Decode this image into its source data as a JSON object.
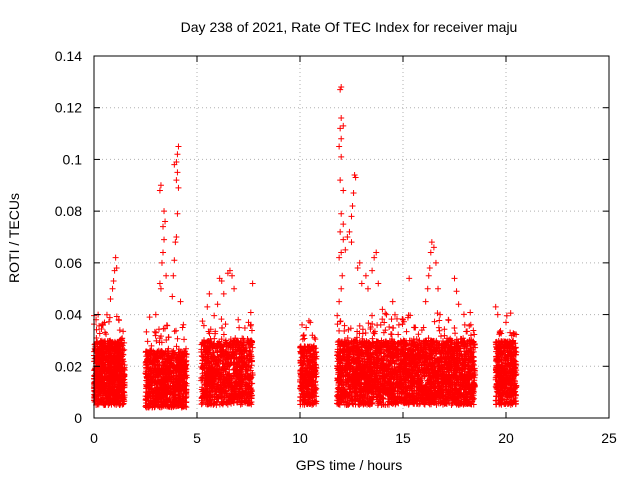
{
  "chart_data": {
    "type": "scatter",
    "title": "Day 238 of 2021, Rate Of TEC Index for receiver maju",
    "xlabel": "GPS time / hours",
    "ylabel": "ROTI / TECUs",
    "xlim": [
      0,
      25
    ],
    "ylim": [
      0,
      0.14
    ],
    "xticks": [
      "0",
      "5",
      "10",
      "15",
      "20",
      "25"
    ],
    "yticks": [
      "0",
      "0.02",
      "0.04",
      "0.06",
      "0.08",
      "0.1",
      "0.12",
      "0.14"
    ],
    "grid": true,
    "marker": "+",
    "color": "#ff0000",
    "series": [
      {
        "name": "ROTI",
        "clusters": [
          {
            "x_range": [
              0.0,
              1.5
            ],
            "base_range": [
              0.005,
              0.03
            ],
            "count": 900
          },
          {
            "x_range": [
              2.5,
              4.5
            ],
            "base_range": [
              0.004,
              0.026
            ],
            "count": 900
          },
          {
            "x_range": [
              5.2,
              7.7
            ],
            "base_range": [
              0.005,
              0.03
            ],
            "count": 1000
          },
          {
            "x_range": [
              10.0,
              10.8
            ],
            "base_range": [
              0.005,
              0.028
            ],
            "count": 350
          },
          {
            "x_range": [
              11.8,
              18.5
            ],
            "base_range": [
              0.005,
              0.03
            ],
            "count": 3000
          },
          {
            "x_range": [
              19.5,
              20.5
            ],
            "base_range": [
              0.005,
              0.03
            ],
            "count": 500
          }
        ],
        "points": [
          [
            0.1,
            0.038
          ],
          [
            0.2,
            0.04
          ],
          [
            0.4,
            0.036
          ],
          [
            0.8,
            0.046
          ],
          [
            0.9,
            0.05
          ],
          [
            0.95,
            0.053
          ],
          [
            1.0,
            0.057
          ],
          [
            1.05,
            0.062
          ],
          [
            1.1,
            0.058
          ],
          [
            1.2,
            0.038
          ],
          [
            2.7,
            0.039
          ],
          [
            3.0,
            0.04
          ],
          [
            3.2,
            0.052
          ],
          [
            3.25,
            0.05
          ],
          [
            3.3,
            0.06
          ],
          [
            3.35,
            0.074
          ],
          [
            3.4,
            0.08
          ],
          [
            3.45,
            0.076
          ],
          [
            3.5,
            0.055
          ],
          [
            3.2,
            0.088
          ],
          [
            3.25,
            0.09
          ],
          [
            3.4,
            0.069
          ],
          [
            3.35,
            0.064
          ],
          [
            3.8,
            0.047
          ],
          [
            3.85,
            0.055
          ],
          [
            3.9,
            0.061
          ],
          [
            3.95,
            0.068
          ],
          [
            4.0,
            0.07
          ],
          [
            4.05,
            0.079
          ],
          [
            4.1,
            0.089
          ],
          [
            4.0,
            0.092
          ],
          [
            4.05,
            0.095
          ],
          [
            4.0,
            0.099
          ],
          [
            4.05,
            0.102
          ],
          [
            4.1,
            0.105
          ],
          [
            3.9,
            0.098
          ],
          [
            4.2,
            0.045
          ],
          [
            4.3,
            0.035
          ],
          [
            5.5,
            0.043
          ],
          [
            5.6,
            0.048
          ],
          [
            6.0,
            0.044
          ],
          [
            6.1,
            0.054
          ],
          [
            6.2,
            0.053
          ],
          [
            6.3,
            0.048
          ],
          [
            6.5,
            0.056
          ],
          [
            6.6,
            0.057
          ],
          [
            6.7,
            0.055
          ],
          [
            6.8,
            0.05
          ],
          [
            7.0,
            0.038
          ],
          [
            7.5,
            0.037
          ],
          [
            7.7,
            0.052
          ],
          [
            10.1,
            0.036
          ],
          [
            10.3,
            0.035
          ],
          [
            10.5,
            0.037
          ],
          [
            10.6,
            0.032
          ],
          [
            11.9,
            0.045
          ],
          [
            12.0,
            0.05
          ],
          [
            12.05,
            0.055
          ],
          [
            11.9,
            0.062
          ],
          [
            12.0,
            0.064
          ],
          [
            12.1,
            0.069
          ],
          [
            11.95,
            0.072
          ],
          [
            12.1,
            0.075
          ],
          [
            12.0,
            0.079
          ],
          [
            12.1,
            0.088
          ],
          [
            11.95,
            0.092
          ],
          [
            12.0,
            0.101
          ],
          [
            11.9,
            0.105
          ],
          [
            12.0,
            0.108
          ],
          [
            11.95,
            0.112
          ],
          [
            12.0,
            0.116
          ],
          [
            12.1,
            0.113
          ],
          [
            11.95,
            0.127
          ],
          [
            12.0,
            0.128
          ],
          [
            12.2,
            0.065
          ],
          [
            12.3,
            0.07
          ],
          [
            12.4,
            0.072
          ],
          [
            12.5,
            0.078
          ],
          [
            12.55,
            0.082
          ],
          [
            12.6,
            0.087
          ],
          [
            12.65,
            0.094
          ],
          [
            12.7,
            0.093
          ],
          [
            12.5,
            0.068
          ],
          [
            12.8,
            0.058
          ],
          [
            12.9,
            0.06
          ],
          [
            13.0,
            0.052
          ],
          [
            13.2,
            0.055
          ],
          [
            13.3,
            0.05
          ],
          [
            13.5,
            0.057
          ],
          [
            13.6,
            0.062
          ],
          [
            13.7,
            0.064
          ],
          [
            13.8,
            0.052
          ],
          [
            14.0,
            0.042
          ],
          [
            14.2,
            0.04
          ],
          [
            14.5,
            0.045
          ],
          [
            14.8,
            0.036
          ],
          [
            15.0,
            0.038
          ],
          [
            15.3,
            0.054
          ],
          [
            15.6,
            0.035
          ],
          [
            15.8,
            0.03
          ],
          [
            16.0,
            0.035
          ],
          [
            16.1,
            0.045
          ],
          [
            16.2,
            0.05
          ],
          [
            16.25,
            0.055
          ],
          [
            16.3,
            0.058
          ],
          [
            16.35,
            0.064
          ],
          [
            16.4,
            0.068
          ],
          [
            16.5,
            0.066
          ],
          [
            16.6,
            0.06
          ],
          [
            16.7,
            0.05
          ],
          [
            16.8,
            0.04
          ],
          [
            17.2,
            0.038
          ],
          [
            17.5,
            0.054
          ],
          [
            17.6,
            0.049
          ],
          [
            17.7,
            0.044
          ],
          [
            18.0,
            0.036
          ],
          [
            18.3,
            0.032
          ],
          [
            19.5,
            0.043
          ],
          [
            19.6,
            0.04
          ],
          [
            20.0,
            0.037
          ],
          [
            20.2,
            0.033
          ]
        ]
      }
    ]
  }
}
